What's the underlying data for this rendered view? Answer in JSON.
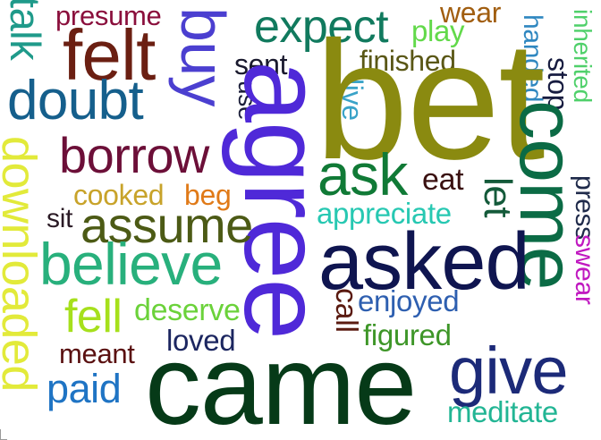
{
  "words": [
    {
      "text": "presume",
      "color": "#8a0f3c"
    },
    {
      "text": "talk",
      "color": "#1f9a8a"
    },
    {
      "text": "felt",
      "color": "#6b1f12"
    },
    {
      "text": "buy",
      "color": "#4b3fd0"
    },
    {
      "text": "expect",
      "color": "#117a5e"
    },
    {
      "text": "play",
      "color": "#62d94a"
    },
    {
      "text": "wear",
      "color": "#a15e10"
    },
    {
      "text": "handed",
      "color": "#2f87c0"
    },
    {
      "text": "inherited",
      "color": "#4fd06a"
    },
    {
      "text": "stop",
      "color": "#171c40"
    },
    {
      "text": "sent",
      "color": "#1a1a2e"
    },
    {
      "text": "finished",
      "color": "#5a5716"
    },
    {
      "text": "use",
      "color": "#1c1f3a"
    },
    {
      "text": "live",
      "color": "#3aa3c8"
    },
    {
      "text": "agree",
      "color": "#4f29d8"
    },
    {
      "text": "bet",
      "color": "#8a8a10"
    },
    {
      "text": "doubt",
      "color": "#155f8c"
    },
    {
      "text": "come",
      "color": "#0b6b45"
    },
    {
      "text": "borrow",
      "color": "#6c0f38"
    },
    {
      "text": "ask",
      "color": "#107a36"
    },
    {
      "text": "eat",
      "color": "#3a1010"
    },
    {
      "text": "downloaded",
      "color": "#e2ea3a"
    },
    {
      "text": "cooked",
      "color": "#c8a32a"
    },
    {
      "text": "beg",
      "color": "#e07a18"
    },
    {
      "text": "press",
      "color": "#1f2a4a"
    },
    {
      "text": "let",
      "color": "#145a3a"
    },
    {
      "text": "sit",
      "color": "#2a1a25"
    },
    {
      "text": "assume",
      "color": "#4c5a15"
    },
    {
      "text": "appreciate",
      "color": "#27c8b2"
    },
    {
      "text": "swear",
      "color": "#c018c0"
    },
    {
      "text": "believe",
      "color": "#28b07c"
    },
    {
      "text": "asked",
      "color": "#0f1550"
    },
    {
      "text": "fell",
      "color": "#a6e01c"
    },
    {
      "text": "deserve",
      "color": "#6bd23a"
    },
    {
      "text": "call",
      "color": "#5a1a10"
    },
    {
      "text": "enjoyed",
      "color": "#2e5fb0"
    },
    {
      "text": "meant",
      "color": "#5a1010"
    },
    {
      "text": "loved",
      "color": "#1c2660"
    },
    {
      "text": "figured",
      "color": "#3e9628"
    },
    {
      "text": "give",
      "color": "#1c2a78"
    },
    {
      "text": "paid",
      "color": "#1f74c4"
    },
    {
      "text": "came",
      "color": "#063a18"
    },
    {
      "text": "meditate",
      "color": "#22b594"
    }
  ]
}
